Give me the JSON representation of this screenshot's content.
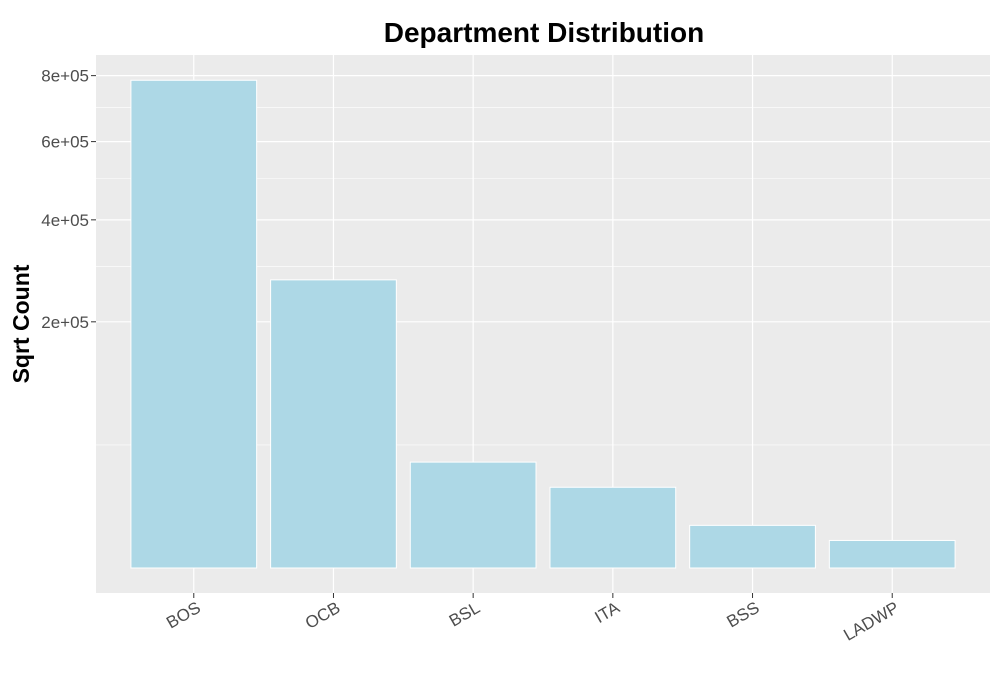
{
  "chart_data": {
    "type": "bar",
    "title": "Department Distribution",
    "xlabel": "",
    "ylabel": "Sqrt Count",
    "y_scale": "sqrt",
    "ylim": [
      0,
      880000
    ],
    "y_ticks": [
      200000,
      400000,
      600000,
      800000
    ],
    "y_tick_labels": [
      "2e+05",
      "4e+05",
      "6e+05",
      "8e+05"
    ],
    "categories": [
      "BOS",
      "OCB",
      "BSL",
      "ITA",
      "BSS",
      "LADWP"
    ],
    "values": [
      785000,
      274000,
      37000,
      21500,
      6000,
      2500
    ],
    "bar_color": "#ADD8E6",
    "panel_color": "#EBEBEB",
    "grid": true,
    "x_tick_rotation": 30
  }
}
